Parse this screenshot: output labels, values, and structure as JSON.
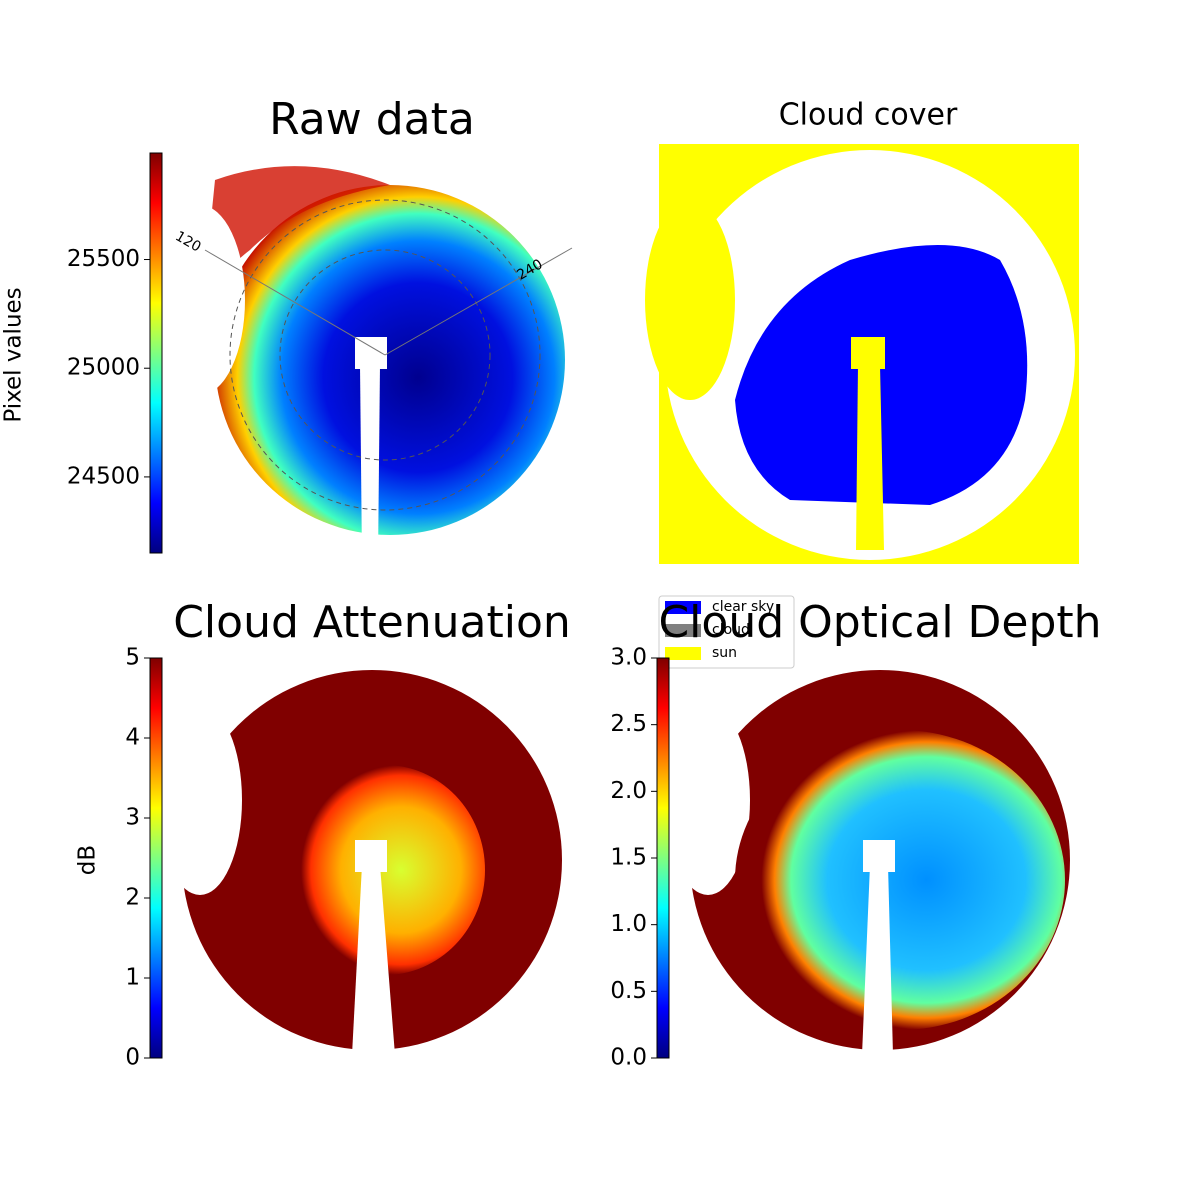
{
  "chart_data": [
    {
      "type": "image",
      "title": "Raw data",
      "colormap": "jet",
      "colorbar": {
        "label": "Pixel values",
        "lim": [
          24150,
          25990
        ],
        "ticks": [
          24500,
          25000,
          25500
        ]
      },
      "annotations": [
        "120",
        "240"
      ]
    },
    {
      "type": "image",
      "title": "Cloud cover",
      "legend": [
        {
          "name": "clear sky",
          "color": "#0000ff"
        },
        {
          "name": "cloud",
          "color": "#808080"
        },
        {
          "name": "sun",
          "color": "#ffff00"
        }
      ]
    },
    {
      "type": "image",
      "title": "Cloud Attenuation",
      "colormap": "jet",
      "colorbar": {
        "label": "dB",
        "lim": [
          0,
          5
        ],
        "ticks": [
          0,
          1,
          2,
          3,
          4,
          5
        ]
      }
    },
    {
      "type": "image",
      "title": "Cloud Optical Depth",
      "colormap": "jet",
      "colorbar": {
        "lim": [
          0,
          3
        ],
        "ticks": [
          {
            "value": 0,
            "label": "0.0"
          },
          {
            "value": 0.5,
            "label": "0.5"
          },
          {
            "value": 1,
            "label": "1.0"
          },
          {
            "value": 1.5,
            "label": "1.5"
          },
          {
            "value": 2,
            "label": "2.0"
          },
          {
            "value": 2.5,
            "label": "2.5"
          },
          {
            "value": 3,
            "label": "3.0"
          }
        ]
      }
    }
  ]
}
